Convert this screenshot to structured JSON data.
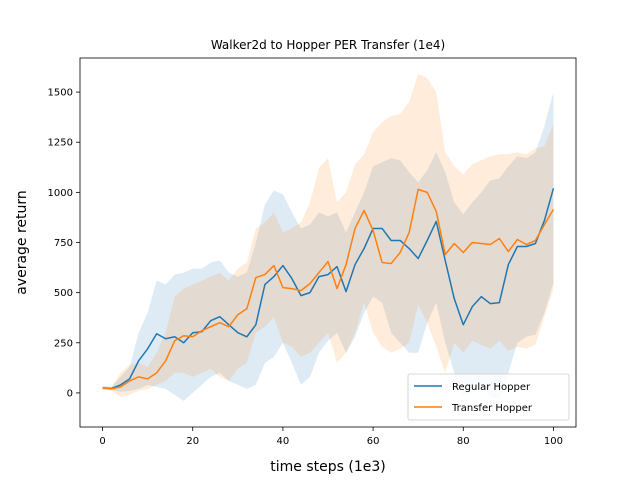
{
  "chart_data": {
    "type": "line",
    "title": "Walker2d to Hopper PER Transfer (1e4)",
    "xlabel": "time steps (1e3)",
    "ylabel": "average return",
    "xlim": [
      -5,
      105
    ],
    "ylim": [
      -170,
      1670
    ],
    "xticks": [
      0,
      20,
      40,
      60,
      80,
      100
    ],
    "xtick_labels": [
      "0",
      "20",
      "40",
      "60",
      "80",
      "100"
    ],
    "yticks": [
      0,
      250,
      500,
      750,
      1000,
      1250,
      1500
    ],
    "ytick_labels": [
      "0",
      "250",
      "500",
      "750",
      "1000",
      "1250",
      "1500"
    ],
    "grid": false,
    "legend_position": "lower-right",
    "x": [
      0,
      2,
      4,
      6,
      8,
      10,
      12,
      14,
      16,
      18,
      20,
      22,
      24,
      26,
      28,
      30,
      32,
      34,
      36,
      38,
      40,
      42,
      44,
      46,
      48,
      50,
      52,
      54,
      56,
      58,
      60,
      62,
      64,
      66,
      68,
      70,
      72,
      74,
      76,
      78,
      80,
      82,
      84,
      86,
      88,
      90,
      92,
      94,
      96,
      98,
      100
    ],
    "series": [
      {
        "name": "Regular Hopper",
        "color": "#1f77b4",
        "values": [
          25,
          22,
          40,
          70,
          160,
          220,
          295,
          270,
          280,
          250,
          300,
          305,
          360,
          380,
          340,
          300,
          280,
          340,
          540,
          580,
          635,
          570,
          485,
          500,
          580,
          590,
          630,
          505,
          640,
          720,
          820,
          820,
          760,
          760,
          720,
          670,
          760,
          855,
          660,
          470,
          340,
          430,
          480,
          445,
          450,
          640,
          730,
          730,
          745,
          860,
          1020
        ],
        "upper": [
          35,
          30,
          80,
          130,
          300,
          400,
          560,
          540,
          590,
          600,
          620,
          620,
          650,
          660,
          600,
          580,
          600,
          750,
          940,
          1010,
          990,
          900,
          820,
          840,
          900,
          880,
          900,
          800,
          900,
          1000,
          1130,
          1150,
          1170,
          1160,
          1100,
          1050,
          1110,
          1200,
          1100,
          950,
          890,
          950,
          1000,
          1060,
          1070,
          1130,
          1180,
          1170,
          1200,
          1330,
          1500
        ],
        "lower": [
          15,
          15,
          5,
          10,
          20,
          40,
          30,
          20,
          -10,
          -40,
          0,
          40,
          80,
          100,
          60,
          40,
          20,
          40,
          150,
          180,
          250,
          150,
          40,
          80,
          200,
          260,
          300,
          200,
          280,
          400,
          480,
          450,
          300,
          250,
          200,
          200,
          350,
          450,
          250,
          100,
          -20,
          0,
          40,
          -20,
          -30,
          100,
          250,
          280,
          290,
          400,
          550
        ]
      },
      {
        "name": "Transfer Hopper",
        "color": "#ff7f0e",
        "values": [
          25,
          20,
          30,
          60,
          80,
          70,
          100,
          160,
          260,
          285,
          280,
          310,
          330,
          350,
          330,
          390,
          420,
          575,
          590,
          635,
          525,
          520,
          510,
          545,
          600,
          655,
          520,
          640,
          820,
          910,
          810,
          650,
          645,
          700,
          800,
          1015,
          1000,
          905,
          690,
          745,
          700,
          750,
          745,
          740,
          770,
          705,
          765,
          740,
          760,
          840,
          915
        ],
        "upper": [
          30,
          30,
          100,
          140,
          150,
          130,
          200,
          300,
          480,
          520,
          540,
          560,
          580,
          600,
          560,
          620,
          650,
          820,
          850,
          900,
          800,
          820,
          850,
          950,
          1120,
          1170,
          950,
          1000,
          1140,
          1190,
          1300,
          1350,
          1380,
          1390,
          1450,
          1590,
          1570,
          1500,
          1200,
          1130,
          1090,
          1140,
          1160,
          1180,
          1190,
          1190,
          1200,
          1190,
          1220,
          1230,
          1340
        ],
        "lower": [
          20,
          10,
          -20,
          -10,
          10,
          20,
          40,
          60,
          100,
          100,
          80,
          100,
          120,
          80,
          60,
          120,
          150,
          300,
          330,
          380,
          250,
          230,
          180,
          200,
          250,
          300,
          150,
          200,
          300,
          450,
          300,
          230,
          200,
          220,
          250,
          440,
          350,
          230,
          100,
          250,
          200,
          260,
          240,
          220,
          260,
          210,
          230,
          220,
          240,
          380,
          520
        ]
      }
    ]
  }
}
